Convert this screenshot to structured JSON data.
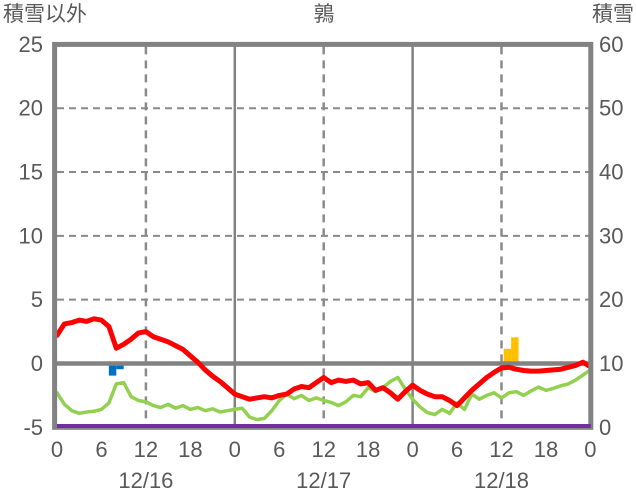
{
  "header": {
    "left_axis_title": "積雪以外",
    "title": "鶉",
    "right_axis_title": "積雪"
  },
  "colors": {
    "text": "#595959",
    "frame": "#828282",
    "grid_dashed": "#8a8a8a",
    "red_line": "#FF0000",
    "green_line": "#92D050",
    "purple_line": "#7030A0",
    "blue_bar": "#0070C0",
    "gold_bar": "#FFC000",
    "background": "#ffffff"
  },
  "chart_data": {
    "type": "line",
    "title": "鶉",
    "x_axis": {
      "unit": "hour",
      "start_hour": 0,
      "end_hour": 72,
      "tick_hours": [
        0,
        6,
        12,
        18,
        24,
        30,
        36,
        42,
        48,
        54,
        60,
        66,
        72
      ],
      "tick_labels": [
        "0",
        "6",
        "12",
        "18",
        "0",
        "6",
        "12",
        "18",
        "0",
        "6",
        "12",
        "18",
        "0"
      ],
      "day_labels": [
        {
          "label": "12/16",
          "center_hour": 12
        },
        {
          "label": "12/17",
          "center_hour": 36
        },
        {
          "label": "12/18",
          "center_hour": 60
        }
      ]
    },
    "left_axis": {
      "label": "積雪以外",
      "min": -5,
      "max": 25,
      "ticks": [
        25,
        20,
        15,
        10,
        5,
        0,
        -5
      ]
    },
    "right_axis": {
      "label": "積雪",
      "min": 0,
      "max": 60,
      "ticks": [
        60,
        50,
        40,
        30,
        20,
        10,
        0
      ]
    },
    "gridlines": {
      "horizontal_dashed_at": [
        20,
        15,
        10,
        5
      ],
      "zero_line_at": 0,
      "vertical_solid_at_hours": [
        24,
        48
      ],
      "vertical_dashed_at_hours": [
        12,
        36,
        60
      ]
    },
    "series": [
      {
        "name": "red-line",
        "color": "#FF0000",
        "width": 5,
        "axis": "left",
        "values": [
          2.2,
          3.1,
          3.2,
          3.4,
          3.3,
          3.5,
          3.4,
          2.9,
          1.2,
          1.5,
          1.9,
          2.4,
          2.5,
          2.1,
          1.9,
          1.7,
          1.4,
          1.1,
          0.6,
          0.1,
          -0.5,
          -1.0,
          -1.4,
          -1.9,
          -2.4,
          -2.6,
          -2.8,
          -2.7,
          -2.6,
          -2.7,
          -2.5,
          -2.4,
          -2.0,
          -1.8,
          -1.9,
          -1.5,
          -1.1,
          -1.5,
          -1.3,
          -1.4,
          -1.3,
          -1.6,
          -1.5,
          -2.1,
          -1.9,
          -2.3,
          -2.8,
          -2.2,
          -1.7,
          -2.1,
          -2.4,
          -2.6,
          -2.6,
          -2.9,
          -3.3,
          -2.7,
          -2.1,
          -1.6,
          -1.1,
          -0.7,
          -0.35,
          -0.3,
          -0.45,
          -0.55,
          -0.6,
          -0.6,
          -0.55,
          -0.5,
          -0.45,
          -0.3,
          -0.15,
          0.1,
          -0.25
        ]
      },
      {
        "name": "green-line",
        "color": "#92D050",
        "width": 3.5,
        "axis": "left",
        "values": [
          -2.3,
          -3.2,
          -3.7,
          -3.9,
          -3.8,
          -3.75,
          -3.6,
          -3.1,
          -1.6,
          -1.5,
          -2.6,
          -2.9,
          -3.0,
          -3.3,
          -3.45,
          -3.2,
          -3.5,
          -3.3,
          -3.6,
          -3.45,
          -3.7,
          -3.55,
          -3.8,
          -3.7,
          -3.6,
          -3.5,
          -4.2,
          -4.4,
          -4.3,
          -3.7,
          -2.9,
          -2.4,
          -2.75,
          -2.5,
          -2.9,
          -2.7,
          -2.9,
          -3.05,
          -3.3,
          -3.0,
          -2.5,
          -2.6,
          -1.9,
          -2.2,
          -1.9,
          -1.4,
          -1.1,
          -2.0,
          -2.8,
          -3.4,
          -3.85,
          -4.0,
          -3.6,
          -3.9,
          -3.1,
          -3.6,
          -2.4,
          -2.8,
          -2.5,
          -2.3,
          -2.7,
          -2.3,
          -2.2,
          -2.5,
          -2.15,
          -1.85,
          -2.1,
          -1.95,
          -1.75,
          -1.6,
          -1.3,
          -0.9,
          -0.5
        ]
      },
      {
        "name": "snow-depth-line",
        "color": "#7030A0",
        "width": 4,
        "axis": "right",
        "constant_value": 0
      }
    ],
    "bars": [
      {
        "name": "blue-bar",
        "color": "#0070C0",
        "from_hour": 7.0,
        "to_hour": 8.0,
        "value": -0.95
      },
      {
        "name": "blue-bar",
        "color": "#0070C0",
        "from_hour": 8.0,
        "to_hour": 9.0,
        "value": -0.45
      },
      {
        "name": "gold-bar",
        "color": "#FFC000",
        "from_hour": 60.3,
        "to_hour": 61.3,
        "value": 1.15
      },
      {
        "name": "gold-bar",
        "color": "#FFC000",
        "from_hour": 61.3,
        "to_hour": 62.3,
        "value": 2.05
      }
    ]
  }
}
